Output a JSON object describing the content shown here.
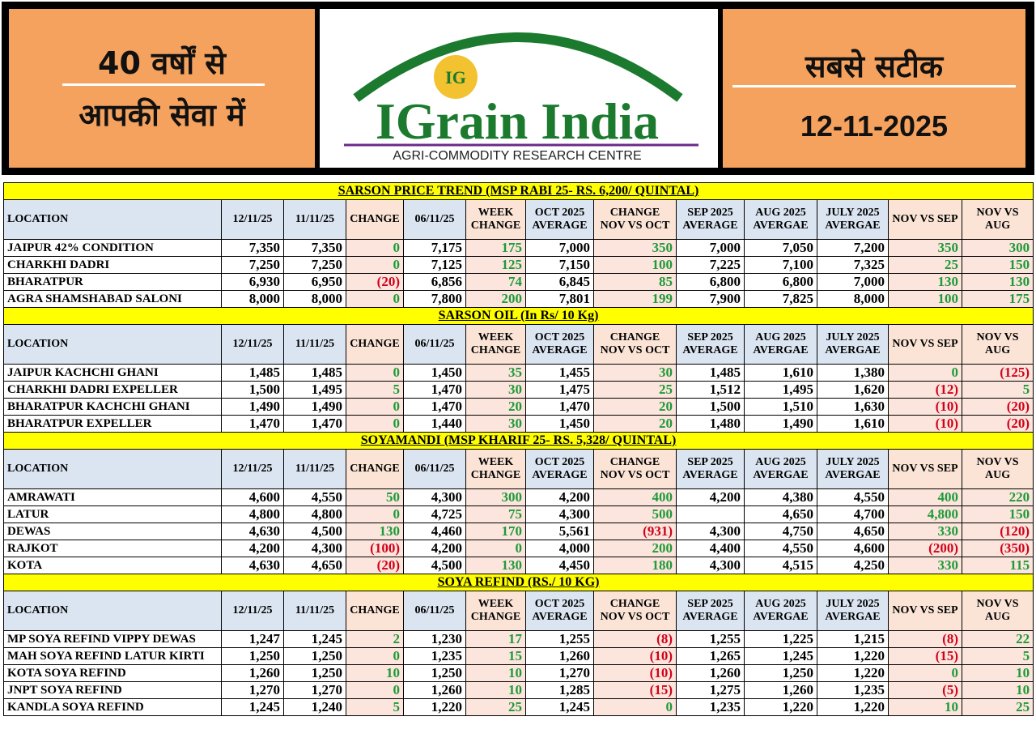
{
  "header": {
    "left_line1": "40 वर्षों से",
    "left_line2": "आपकी सेवा में",
    "logo_badge": "IG",
    "logo_text": "IGrain India",
    "logo_subtitle": "AGRI-COMMODITY RESEARCH CENTRE",
    "right_title": "सबसे सटीक",
    "date": "12-11-2025"
  },
  "sections": [
    {
      "title": "SARSON PRICE TREND (MSP RABI 25- RS. 6,200/ QUINTAL)",
      "columns": [
        "LOCATION",
        "12/11/25",
        "11/11/25",
        "CHANGE",
        "06/11/25",
        "WEEK CHANGE",
        "OCT 2025 AVERAGE",
        "CHANGE NOV VS OCT",
        "SEP 2025 AVERAGE",
        "AUG 2025 AVERGAE",
        "JULY 2025 AVERGAE",
        "NOV VS SEP",
        "NOV VS AUG"
      ],
      "rows": [
        [
          "JAIPUR 42% CONDITION",
          "7,350",
          "7,350",
          "0",
          "7,175",
          "175",
          "7,000",
          "350",
          "7,000",
          "7,050",
          "7,200",
          "350",
          "300"
        ],
        [
          "CHARKHI DADRI",
          "7,250",
          "7,250",
          "0",
          "7,125",
          "125",
          "7,150",
          "100",
          "7,225",
          "7,100",
          "7,325",
          "25",
          "150"
        ],
        [
          "BHARATPUR",
          "6,930",
          "6,950",
          "(20)",
          "6,856",
          "74",
          "6,845",
          "85",
          "6,800",
          "6,800",
          "7,000",
          "130",
          "130"
        ],
        [
          "AGRA SHAMSHABAD SALONI",
          "8,000",
          "8,000",
          "0",
          "7,800",
          "200",
          "7,801",
          "199",
          "7,900",
          "7,825",
          "8,000",
          "100",
          "175"
        ]
      ]
    },
    {
      "title": "SARSON OIL (In Rs/ 10 Kg)",
      "columns": [
        "LOCATION",
        "12/11/25",
        "11/11/25",
        "CHANGE",
        "06/11/25",
        "WEEK CHANGE",
        "OCT 2025 AVERAGE",
        "CHANGE NOV VS OCT",
        "SEP 2025 AVERAGE",
        "AUG 2025 AVERGAE",
        "JULY 2025 AVERGAE",
        "NOV VS SEP",
        "NOV VS AUG"
      ],
      "rows": [
        [
          "JAIPUR KACHCHI GHANI",
          "1,485",
          "1,485",
          "0",
          "1,450",
          "35",
          "1,455",
          "30",
          "1,485",
          "1,610",
          "1,380",
          "0",
          "(125)"
        ],
        [
          "CHARKHI DADRI EXPELLER",
          "1,500",
          "1,495",
          "5",
          "1,470",
          "30",
          "1,475",
          "25",
          "1,512",
          "1,495",
          "1,620",
          "(12)",
          "5"
        ],
        [
          "BHARATPUR KACHCHI GHANI",
          "1,490",
          "1,490",
          "0",
          "1,470",
          "20",
          "1,470",
          "20",
          "1,500",
          "1,510",
          "1,630",
          "(10)",
          "(20)"
        ],
        [
          "BHARATPUR EXPELLER",
          "1,470",
          "1,470",
          "0",
          "1,440",
          "30",
          "1,450",
          "20",
          "1,480",
          "1,490",
          "1,610",
          "(10)",
          "(20)"
        ]
      ]
    },
    {
      "title": "SOYAMANDI (MSP KHARIF 25- RS. 5,328/ QUINTAL)",
      "columns": [
        "LOCATION",
        "12/11/25",
        "11/11/25",
        "CHANGE",
        "06/11/25",
        "WEEK CHANGE",
        "OCT 2025 AVERAGE",
        "CHANGE NOV VS OCT",
        "SEP 2025 AVERAGE",
        "AUG 2025 AVERGAE",
        "JULY 2025 AVERGAE",
        "NOV VS SEP",
        "NOV VS AUG"
      ],
      "rows": [
        [
          "AMRAWATI",
          "4,600",
          "4,550",
          "50",
          "4,300",
          "300",
          "4,200",
          "400",
          "4,200",
          "4,380",
          "4,550",
          "400",
          "220"
        ],
        [
          "LATUR",
          "4,800",
          "4,800",
          "0",
          "4,725",
          "75",
          "4,300",
          "500",
          null,
          "4,650",
          "4,700",
          "4,800",
          "150"
        ],
        [
          "DEWAS",
          "4,630",
          "4,500",
          "130",
          "4,460",
          "170",
          "5,561",
          "(931)",
          "4,300",
          "4,750",
          "4,650",
          "330",
          "(120)"
        ],
        [
          "RAJKOT",
          "4,200",
          "4,300",
          "(100)",
          "4,200",
          "0",
          "4,000",
          "200",
          "4,400",
          "4,550",
          "4,600",
          "(200)",
          "(350)"
        ],
        [
          "KOTA",
          "4,630",
          "4,650",
          "(20)",
          "4,500",
          "130",
          "4,450",
          "180",
          "4,300",
          "4,515",
          "4,250",
          "330",
          "115"
        ]
      ]
    },
    {
      "title": "SOYA REFIND (RS./ 10 KG)",
      "columns": [
        "LOCATION",
        "12/11/25",
        "11/11/25",
        "CHANGE",
        "06/11/25",
        "WEEK CHANGE",
        "OCT 2025 AVERAGE",
        "CHANGE NOV VS OCT",
        "SEP 2025 AVERAGE",
        "AUG 2025 AVERGAE",
        "JULY 2025 AVERGAE",
        "NOV VS SEP",
        "NOV VS AUG"
      ],
      "rows": [
        [
          "MP SOYA REFIND VIPPY DEWAS",
          "1,247",
          "1,245",
          "2",
          "1,230",
          "17",
          "1,255",
          "(8)",
          "1,255",
          "1,225",
          "1,215",
          "(8)",
          "22"
        ],
        [
          "MAH SOYA REFIND LATUR KIRTI",
          "1,250",
          "1,250",
          "0",
          "1,235",
          "15",
          "1,260",
          "(10)",
          "1,265",
          "1,245",
          "1,220",
          "(15)",
          "5"
        ],
        [
          "KOTA SOYA REFIND",
          "1,260",
          "1,250",
          "10",
          "1,250",
          "10",
          "1,270",
          "(10)",
          "1,260",
          "1,250",
          "1,220",
          "0",
          "10"
        ],
        [
          "JNPT SOYA REFIND",
          "1,270",
          "1,270",
          "0",
          "1,260",
          "10",
          "1,285",
          "(15)",
          "1,275",
          "1,260",
          "1,235",
          "(5)",
          "10"
        ],
        [
          "KANDLA SOYA REFIND",
          "1,245",
          "1,240",
          "5",
          "1,220",
          "25",
          "1,245",
          "0",
          "1,235",
          "1,220",
          "1,220",
          "10",
          "25"
        ]
      ]
    }
  ]
}
